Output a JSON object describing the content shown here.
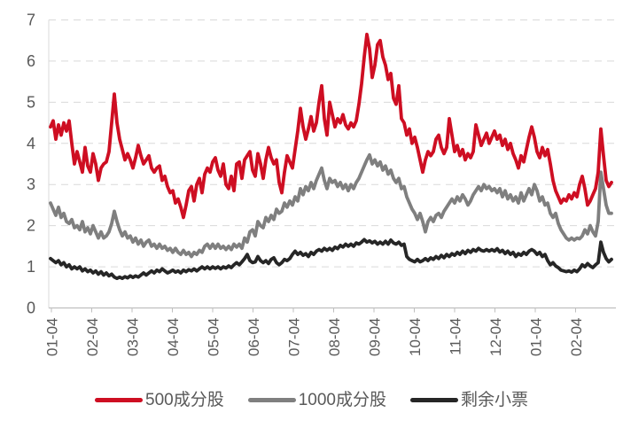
{
  "chart_data": {
    "type": "line",
    "title": "",
    "xlabel": "",
    "ylabel": "",
    "ylim": [
      0,
      7
    ],
    "y_ticks": [
      0,
      1,
      2,
      3,
      4,
      5,
      6,
      7
    ],
    "x_tick_labels": [
      "01-04",
      "02-04",
      "03-04",
      "04-04",
      "05-04",
      "06-04",
      "07-04",
      "08-04",
      "09-04",
      "10-04",
      "11-04",
      "12-04",
      "01-04",
      "02-04"
    ],
    "grid": "horizontal-dashed",
    "legend_position": "bottom",
    "background_color": "#FFFFFF",
    "grid_color": "#D9D9D9",
    "axis_color": "#BFBFBF",
    "tick_label_color": "#595959",
    "x_start_month": -0.022,
    "x_step_month": 0.06593,
    "series": [
      {
        "name": "500成分股",
        "color": "#CE0E22",
        "values": [
          4.4,
          4.55,
          4.1,
          4.45,
          4.2,
          4.5,
          4.3,
          4.55,
          4.0,
          3.5,
          3.8,
          3.55,
          3.3,
          3.9,
          3.45,
          3.3,
          3.75,
          3.5,
          3.1,
          3.4,
          3.5,
          3.55,
          3.8,
          4.5,
          5.2,
          4.5,
          4.1,
          3.85,
          3.6,
          3.75,
          3.6,
          3.4,
          3.65,
          3.95,
          3.7,
          3.5,
          3.6,
          3.7,
          3.4,
          3.3,
          3.4,
          3.45,
          3.1,
          3.2,
          2.95,
          2.8,
          2.85,
          2.55,
          2.65,
          2.45,
          2.2,
          2.5,
          2.85,
          2.95,
          2.6,
          3.0,
          3.15,
          2.8,
          3.25,
          3.4,
          3.3,
          3.55,
          3.65,
          3.35,
          3.2,
          3.5,
          3.0,
          2.9,
          3.2,
          2.85,
          3.5,
          3.55,
          3.15,
          3.6,
          3.7,
          3.8,
          3.35,
          3.2,
          3.75,
          3.5,
          3.15,
          3.6,
          3.9,
          3.65,
          3.5,
          3.6,
          3.05,
          2.8,
          3.3,
          3.7,
          3.55,
          3.4,
          3.85,
          4.3,
          4.85,
          4.4,
          4.1,
          4.35,
          4.65,
          4.3,
          4.5,
          5.0,
          5.4,
          4.6,
          4.2,
          5.0,
          4.7,
          4.4,
          4.6,
          4.5,
          4.7,
          4.45,
          4.35,
          4.5,
          4.4,
          4.55,
          4.95,
          5.45,
          6.1,
          6.65,
          6.3,
          5.6,
          5.9,
          6.4,
          6.5,
          6.1,
          5.9,
          5.55,
          5.7,
          5.1,
          4.95,
          5.4,
          4.6,
          4.5,
          4.2,
          4.35,
          4.0,
          4.15,
          3.9,
          3.6,
          3.3,
          3.6,
          3.8,
          3.7,
          3.8,
          4.1,
          4.2,
          3.9,
          3.75,
          3.9,
          4.6,
          4.2,
          3.8,
          3.95,
          3.7,
          3.85,
          3.6,
          3.75,
          3.65,
          3.8,
          4.45,
          4.2,
          3.95,
          4.1,
          4.25,
          4.0,
          4.15,
          4.3,
          4.1,
          4.2,
          3.95,
          4.1,
          3.85,
          4.0,
          3.75,
          3.6,
          3.4,
          3.7,
          3.55,
          3.85,
          4.15,
          4.4,
          4.15,
          3.8,
          3.65,
          3.9,
          3.7,
          3.85,
          3.5,
          3.1,
          2.85,
          2.7,
          2.55,
          2.65,
          2.6,
          2.75,
          2.65,
          2.8,
          2.7,
          3.0,
          3.2,
          2.9,
          2.5,
          2.6,
          2.75,
          2.9,
          3.3,
          4.35,
          3.7,
          3.1,
          2.95,
          3.05
        ]
      },
      {
        "name": "1000成分股",
        "color": "#7F7F7F",
        "values": [
          2.55,
          2.4,
          2.25,
          2.45,
          2.2,
          2.3,
          2.1,
          2.05,
          2.15,
          1.95,
          2.0,
          1.9,
          2.1,
          1.85,
          1.95,
          1.8,
          2.0,
          1.85,
          1.7,
          1.85,
          1.7,
          1.75,
          1.85,
          2.05,
          2.35,
          2.1,
          1.9,
          1.75,
          1.85,
          1.7,
          1.75,
          1.6,
          1.7,
          1.55,
          1.65,
          1.5,
          1.6,
          1.65,
          1.5,
          1.55,
          1.45,
          1.55,
          1.45,
          1.5,
          1.4,
          1.45,
          1.35,
          1.45,
          1.35,
          1.3,
          1.4,
          1.3,
          1.35,
          1.25,
          1.35,
          1.3,
          1.4,
          1.35,
          1.5,
          1.55,
          1.45,
          1.55,
          1.45,
          1.55,
          1.45,
          1.5,
          1.42,
          1.5,
          1.42,
          1.55,
          1.48,
          1.55,
          1.45,
          1.7,
          1.6,
          1.85,
          1.9,
          1.75,
          2.1,
          2.0,
          1.95,
          2.2,
          2.1,
          2.25,
          2.15,
          2.4,
          2.3,
          2.35,
          2.55,
          2.45,
          2.6,
          2.5,
          2.7,
          2.6,
          2.9,
          2.75,
          2.95,
          2.85,
          3.05,
          2.9,
          3.1,
          3.25,
          3.4,
          3.1,
          2.9,
          3.15,
          3.05,
          3.1,
          2.95,
          3.05,
          2.9,
          3.0,
          2.85,
          3.0,
          2.9,
          3.05,
          3.15,
          3.3,
          3.45,
          3.6,
          3.72,
          3.5,
          3.6,
          3.45,
          3.55,
          3.35,
          3.45,
          3.25,
          3.35,
          3.15,
          3.05,
          3.15,
          2.9,
          2.95,
          2.7,
          2.55,
          2.4,
          2.3,
          2.15,
          2.3,
          2.1,
          1.85,
          2.1,
          2.2,
          2.1,
          2.25,
          2.3,
          2.2,
          2.35,
          2.45,
          2.55,
          2.65,
          2.55,
          2.7,
          2.6,
          2.75,
          2.65,
          2.5,
          2.6,
          2.75,
          2.85,
          2.95,
          2.85,
          3.0,
          2.9,
          2.95,
          2.85,
          2.9,
          2.8,
          2.9,
          2.7,
          2.85,
          2.65,
          2.75,
          2.6,
          2.7,
          2.55,
          2.8,
          2.6,
          2.75,
          2.9,
          2.75,
          3.0,
          2.85,
          2.6,
          2.7,
          2.5,
          2.55,
          2.3,
          2.2,
          2.3,
          2.05,
          1.9,
          1.8,
          1.7,
          1.65,
          1.7,
          1.65,
          1.7,
          1.68,
          1.75,
          1.9,
          1.8,
          2.0,
          1.85,
          1.75,
          2.1,
          3.3,
          2.9,
          2.5,
          2.3,
          2.3
        ]
      },
      {
        "name": "剩余小票",
        "color": "#262626",
        "values": [
          1.2,
          1.15,
          1.1,
          1.15,
          1.05,
          1.1,
          1.0,
          1.05,
          0.95,
          1.0,
          0.95,
          1.0,
          0.9,
          0.95,
          0.88,
          0.92,
          0.85,
          0.9,
          0.82,
          0.88,
          0.8,
          0.85,
          0.78,
          0.82,
          0.75,
          0.72,
          0.75,
          0.72,
          0.76,
          0.73,
          0.78,
          0.74,
          0.78,
          0.75,
          0.8,
          0.85,
          0.8,
          0.85,
          0.9,
          0.85,
          0.92,
          0.88,
          0.95,
          0.9,
          0.85,
          0.88,
          0.92,
          0.87,
          0.9,
          0.85,
          0.92,
          0.88,
          0.93,
          0.9,
          0.95,
          0.9,
          0.95,
          1.0,
          0.95,
          1.0,
          0.95,
          1.0,
          0.96,
          1.0,
          0.95,
          1.0,
          0.97,
          1.02,
          0.98,
          1.05,
          1.1,
          1.05,
          1.12,
          1.2,
          1.3,
          1.15,
          1.1,
          1.12,
          1.25,
          1.15,
          1.1,
          1.15,
          1.08,
          1.18,
          1.22,
          1.1,
          1.05,
          1.1,
          1.18,
          1.15,
          1.2,
          1.3,
          1.38,
          1.3,
          1.35,
          1.28,
          1.32,
          1.25,
          1.35,
          1.3,
          1.38,
          1.42,
          1.38,
          1.45,
          1.4,
          1.45,
          1.4,
          1.48,
          1.44,
          1.52,
          1.48,
          1.55,
          1.5,
          1.55,
          1.5,
          1.58,
          1.55,
          1.6,
          1.66,
          1.6,
          1.63,
          1.58,
          1.62,
          1.55,
          1.6,
          1.55,
          1.62,
          1.55,
          1.65,
          1.58,
          1.55,
          1.6,
          1.52,
          1.55,
          1.25,
          1.18,
          1.15,
          1.12,
          1.18,
          1.12,
          1.15,
          1.2,
          1.15,
          1.22,
          1.18,
          1.25,
          1.2,
          1.28,
          1.22,
          1.3,
          1.25,
          1.32,
          1.28,
          1.35,
          1.3,
          1.38,
          1.32,
          1.4,
          1.35,
          1.42,
          1.38,
          1.45,
          1.4,
          1.38,
          1.42,
          1.38,
          1.42,
          1.38,
          1.44,
          1.36,
          1.4,
          1.32,
          1.38,
          1.3,
          1.35,
          1.25,
          1.32,
          1.28,
          1.35,
          1.3,
          1.38,
          1.42,
          1.38,
          1.3,
          1.35,
          1.25,
          1.3,
          1.15,
          1.05,
          1.1,
          1.02,
          0.98,
          0.92,
          0.9,
          0.88,
          0.9,
          0.87,
          0.92,
          0.88,
          0.95,
          1.05,
          1.0,
          1.08,
          1.02,
          0.98,
          1.05,
          1.1,
          1.6,
          1.35,
          1.2,
          1.12,
          1.18
        ]
      }
    ]
  }
}
